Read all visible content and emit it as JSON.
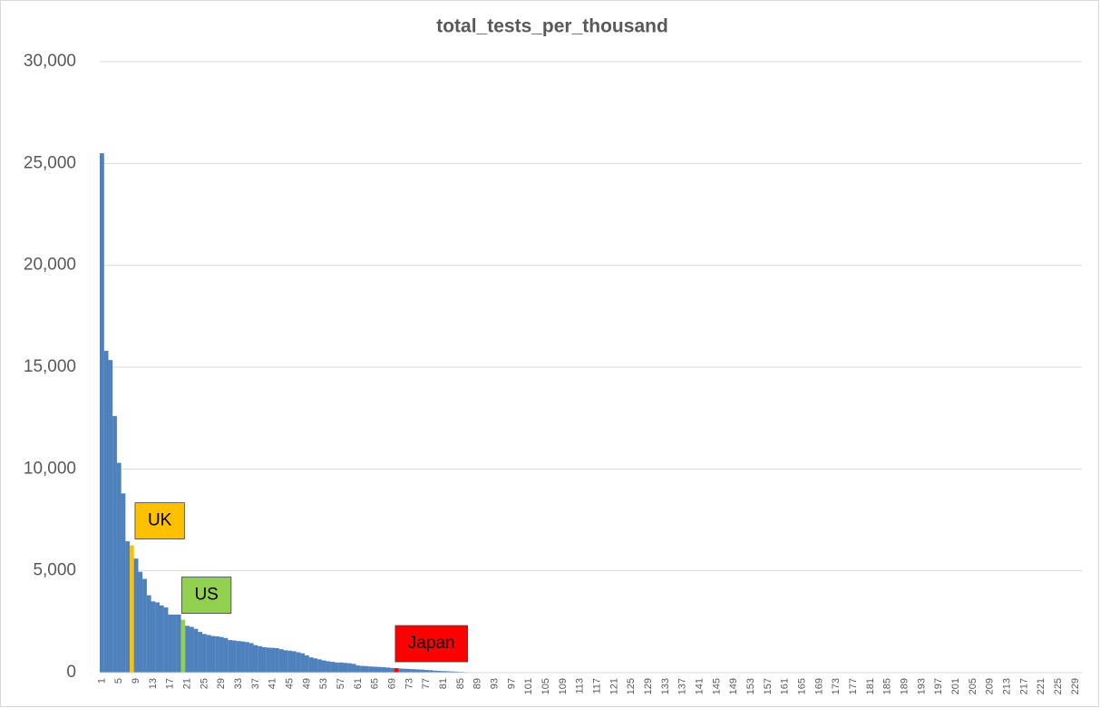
{
  "chart_data": {
    "type": "bar",
    "title": "total_tests_per_thousand",
    "categories": [
      1,
      null,
      null,
      null,
      5,
      null,
      null,
      null,
      9,
      null,
      null,
      null,
      13,
      null,
      null,
      null,
      17,
      null,
      null,
      null,
      21,
      null,
      null,
      null,
      25,
      null,
      null,
      null,
      29,
      null,
      null,
      null,
      33,
      null,
      null,
      null,
      37,
      null,
      null,
      null,
      41,
      null,
      null,
      null,
      45,
      null,
      null,
      null,
      49,
      null,
      null,
      null,
      53,
      null,
      null,
      null,
      57,
      null,
      null,
      null,
      61,
      null,
      null,
      null,
      65,
      null,
      null,
      null,
      69,
      null,
      null,
      null,
      73,
      null,
      null,
      null,
      77,
      null,
      null,
      null,
      81,
      null,
      null,
      null,
      85,
      null,
      null,
      null,
      89,
      null,
      null,
      null,
      93,
      null,
      null,
      null,
      97,
      null,
      null,
      null,
      101,
      null,
      null,
      null,
      105,
      null,
      null,
      null,
      109,
      null,
      null,
      null,
      113,
      null,
      null,
      null,
      117,
      null,
      null,
      null,
      121,
      null,
      null,
      null,
      125,
      null,
      null,
      null,
      129,
      null,
      null,
      null,
      133,
      null,
      null,
      null,
      137,
      null,
      null,
      null,
      141,
      null,
      null,
      null,
      145,
      null,
      null,
      null,
      149,
      null,
      null,
      null,
      153,
      null,
      null,
      null,
      157,
      null,
      null,
      null,
      161,
      null,
      null,
      null,
      165,
      null,
      null,
      null,
      169,
      null,
      null,
      null,
      173,
      null,
      null,
      null,
      177,
      null,
      null,
      null,
      181,
      null,
      null,
      null,
      185,
      null,
      null,
      null,
      189,
      null,
      null,
      null,
      193,
      null,
      null,
      null,
      197,
      null,
      null,
      null,
      201,
      null,
      null,
      null,
      205,
      null,
      null,
      null,
      209,
      null,
      null,
      null,
      213,
      null,
      null,
      null,
      217,
      null,
      null,
      null,
      221,
      null,
      null,
      null,
      225,
      null,
      null,
      null,
      229,
      null
    ],
    "values": [
      25500,
      15800,
      15350,
      12600,
      10300,
      8800,
      6450,
      6250,
      5600,
      4950,
      4600,
      3800,
      3500,
      3450,
      3300,
      3200,
      2850,
      2850,
      2850,
      2600,
      2300,
      2250,
      2150,
      2000,
      1900,
      1850,
      1800,
      1780,
      1750,
      1700,
      1600,
      1580,
      1550,
      1530,
      1500,
      1450,
      1350,
      1300,
      1250,
      1230,
      1220,
      1200,
      1150,
      1100,
      1080,
      1050,
      1000,
      950,
      850,
      750,
      700,
      650,
      600,
      560,
      530,
      500,
      500,
      480,
      460,
      430,
      350,
      330,
      320,
      300,
      290,
      280,
      270,
      250,
      230,
      220,
      200,
      190,
      180,
      170,
      160,
      150,
      130,
      120,
      100,
      90,
      80,
      70,
      60,
      50,
      40,
      30,
      20,
      15,
      10,
      10,
      10,
      10,
      10,
      10,
      10,
      10,
      10,
      10,
      10,
      10,
      10,
      10,
      10,
      10,
      10,
      10,
      10,
      10,
      10,
      10,
      5,
      5,
      5,
      5,
      5,
      5,
      5,
      5,
      5,
      5,
      5,
      5,
      5,
      5,
      5,
      5,
      5,
      5,
      5,
      5,
      5,
      5,
      5,
      5,
      5,
      5,
      5,
      5,
      5,
      5,
      5,
      5,
      5,
      5,
      5,
      5,
      5,
      5,
      5,
      5,
      2,
      2,
      2,
      2,
      2,
      2,
      2,
      2,
      2,
      2,
      2,
      2,
      2,
      2,
      2,
      2,
      2,
      2,
      2,
      2,
      2,
      2,
      2,
      2,
      2,
      2,
      2,
      2,
      2,
      2,
      2,
      2,
      2,
      2,
      2,
      2,
      2,
      2,
      2,
      2,
      2,
      2,
      2,
      2,
      2,
      2,
      2,
      2,
      2,
      2,
      2,
      2,
      2,
      2,
      2,
      2,
      2,
      2,
      2,
      2,
      2,
      2,
      2,
      2,
      2,
      2,
      2,
      2,
      2,
      2,
      2,
      2,
      2,
      2,
      2,
      2,
      2,
      2,
      2,
      2
    ],
    "color": "#4f81bd",
    "highlights": [
      {
        "label": "UK",
        "category_index": 7,
        "color": "#ffc000"
      },
      {
        "label": "US",
        "category_index": 19,
        "color": "#92d050"
      },
      {
        "label": "Japan",
        "category_index": 69,
        "color": "#ff0000"
      }
    ],
    "ylim": [
      0,
      30000
    ],
    "yticks": [
      0,
      {
        "value": 5000,
        "label": "5,000"
      },
      {
        "value": 10000,
        "label": "10,000"
      },
      {
        "value": 15000,
        "label": "15,000"
      },
      {
        "value": 20000,
        "label": "20,000"
      },
      {
        "value": 25000,
        "label": "25,000"
      },
      {
        "value": 30000,
        "label": "30,000"
      }
    ],
    "grid": true
  }
}
